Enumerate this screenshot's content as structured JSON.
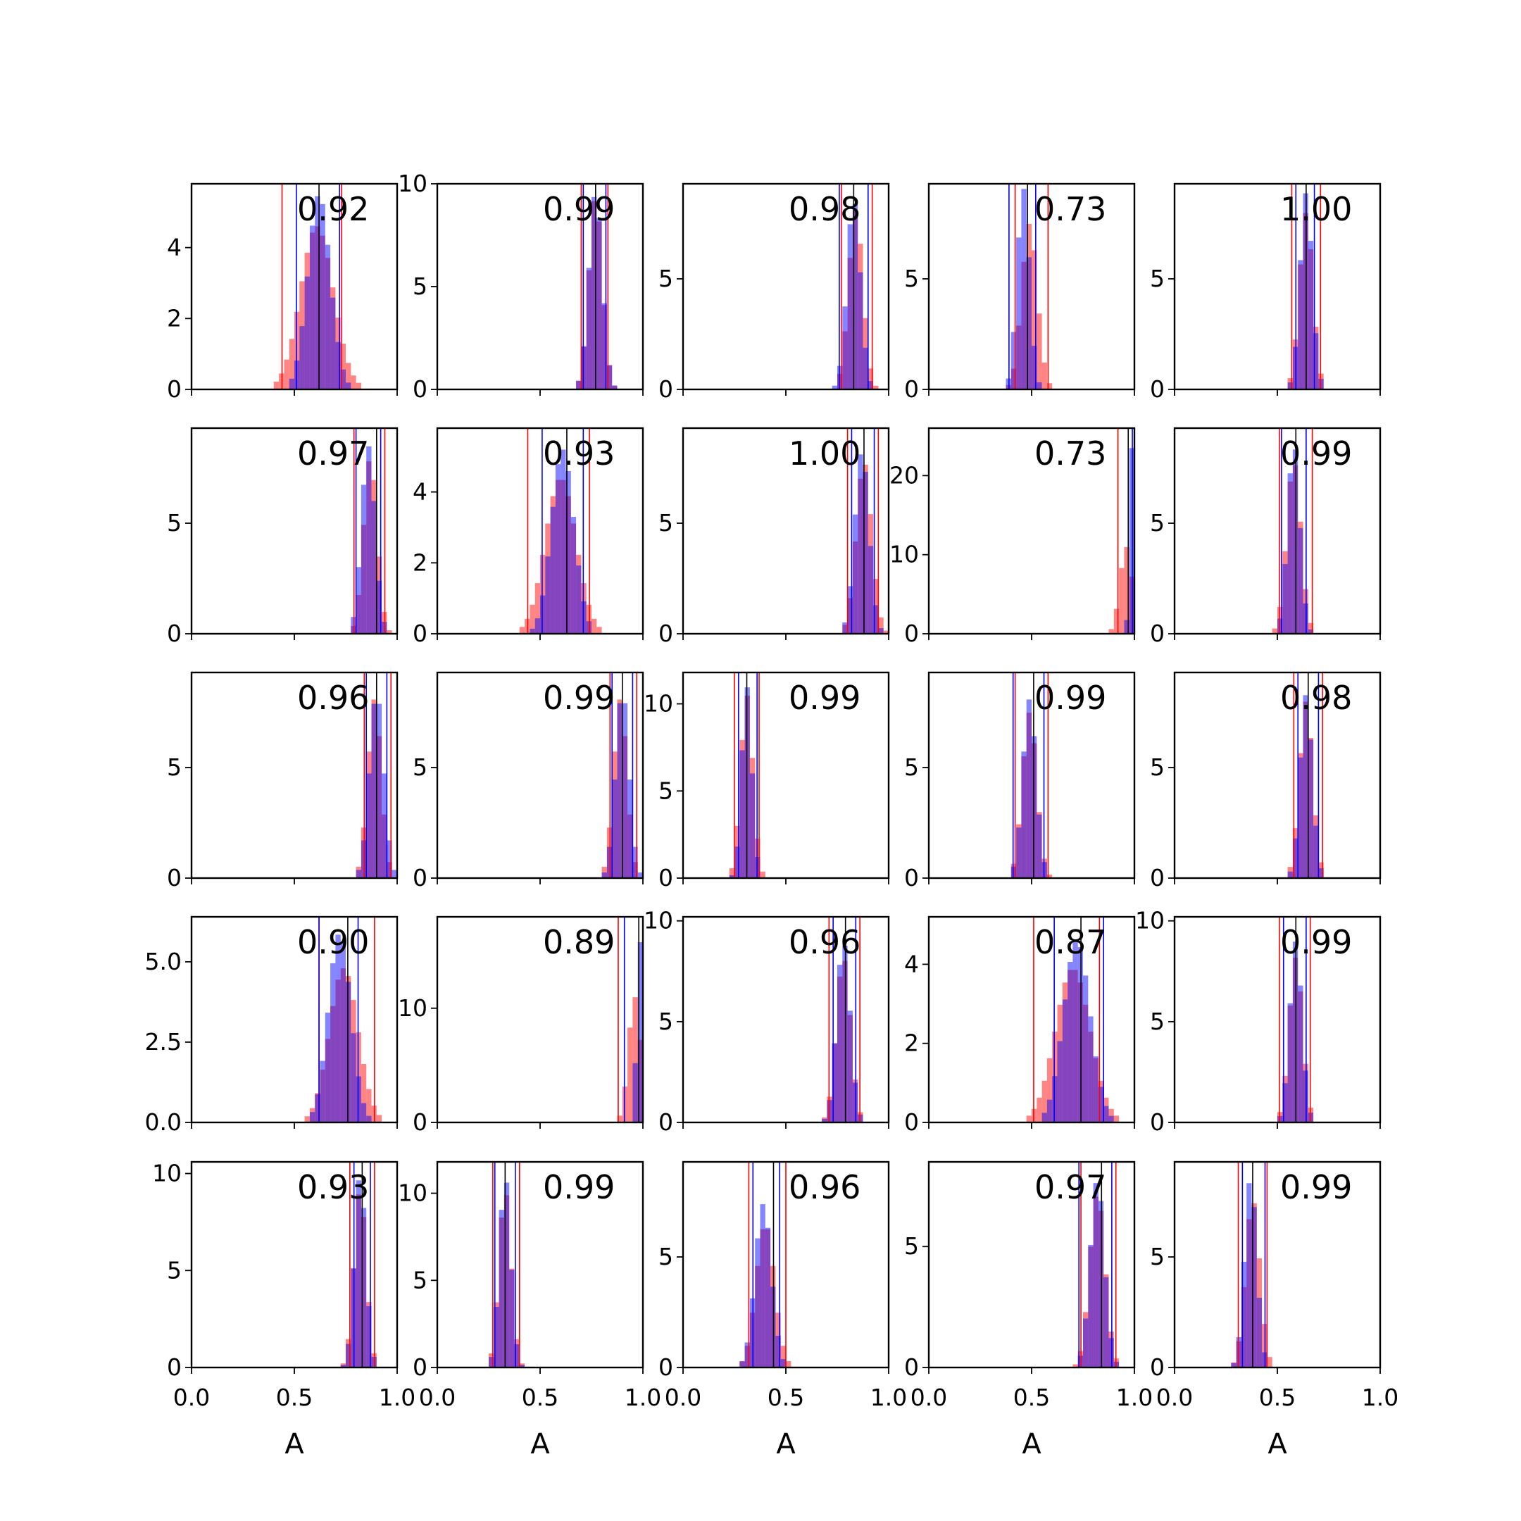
{
  "chart_data": {
    "type": "histogram-grid",
    "rows": 5,
    "cols": 5,
    "xlabel": "A",
    "xlim": [
      0,
      1
    ],
    "xticks": [
      0.0,
      0.5,
      1.0
    ],
    "xtick_labels": [
      "0.0",
      "0.5",
      "1.0"
    ],
    "colors": {
      "red_series": "#ff0000",
      "blue_series": "#0000ff",
      "median_line": "#000000"
    },
    "bin_width": 0.025,
    "panels": [
      {
        "score": "0.92",
        "ylim": [
          0,
          5.8
        ],
        "yticks": [
          0,
          2,
          4
        ],
        "ytick_labels": [
          "0",
          "2",
          "4"
        ],
        "red_lines": [
          0.44,
          0.73
        ],
        "blue_lines": [
          0.51,
          0.72
        ],
        "black_line": 0.62,
        "red": {
          "center": 0.61,
          "width": 0.08,
          "peak": 4.6
        },
        "blue": {
          "center": 0.62,
          "width": 0.055,
          "peak": 5.5
        }
      },
      {
        "score": "0.99",
        "ylim": [
          0,
          10.0
        ],
        "yticks": [
          0,
          5,
          10
        ],
        "ytick_labels": [
          "0",
          "5",
          "10"
        ],
        "red_lines": [
          0.7,
          0.83
        ],
        "blue_lines": [
          0.71,
          0.82
        ],
        "black_line": 0.77,
        "red": {
          "center": 0.77,
          "width": 0.033,
          "peak": 9.4
        },
        "blue": {
          "center": 0.77,
          "width": 0.033,
          "peak": 9.6
        }
      },
      {
        "score": "0.98",
        "ylim": [
          0,
          9.3
        ],
        "yticks": [
          0,
          5
        ],
        "ytick_labels": [
          "0",
          "5"
        ],
        "red_lines": [
          0.77,
          0.92
        ],
        "blue_lines": [
          0.76,
          0.9
        ],
        "black_line": 0.83,
        "red": {
          "center": 0.84,
          "width": 0.035,
          "peak": 8.1
        },
        "blue": {
          "center": 0.83,
          "width": 0.033,
          "peak": 8.6
        }
      },
      {
        "score": "0.73",
        "ylim": [
          0,
          9.3
        ],
        "yticks": [
          0,
          5
        ],
        "ytick_labels": [
          "0",
          "5"
        ],
        "red_lines": [
          0.42,
          0.58
        ],
        "blue_lines": [
          0.39,
          0.52
        ],
        "black_line": 0.48,
        "red": {
          "center": 0.49,
          "width": 0.038,
          "peak": 7.5
        },
        "blue": {
          "center": 0.46,
          "width": 0.03,
          "peak": 9.1
        }
      },
      {
        "score": "1.00",
        "ylim": [
          0,
          9.3
        ],
        "yticks": [
          0,
          5
        ],
        "ytick_labels": [
          "0",
          "5"
        ],
        "red_lines": [
          0.57,
          0.71
        ],
        "blue_lines": [
          0.59,
          0.68
        ],
        "black_line": 0.64,
        "red": {
          "center": 0.64,
          "width": 0.033,
          "peak": 8.0
        },
        "blue": {
          "center": 0.64,
          "width": 0.03,
          "peak": 8.9
        }
      },
      {
        "score": "0.97",
        "ylim": [
          0,
          9.3
        ],
        "yticks": [
          0,
          5
        ],
        "ytick_labels": [
          "0",
          "5"
        ],
        "red_lines": [
          0.79,
          0.94
        ],
        "blue_lines": [
          0.8,
          0.92
        ],
        "black_line": 0.9,
        "red": {
          "center": 0.87,
          "width": 0.033,
          "peak": 8.0
        },
        "blue": {
          "center": 0.86,
          "width": 0.033,
          "peak": 8.5
        }
      },
      {
        "score": "0.93",
        "ylim": [
          0,
          5.8
        ],
        "yticks": [
          0,
          2,
          4
        ],
        "ytick_labels": [
          "0",
          "2",
          "4"
        ],
        "red_lines": [
          0.44,
          0.74
        ],
        "blue_lines": [
          0.51,
          0.71
        ],
        "black_line": 0.63,
        "red": {
          "center": 0.6,
          "width": 0.075,
          "peak": 4.4
        },
        "blue": {
          "center": 0.61,
          "width": 0.055,
          "peak": 5.2
        }
      },
      {
        "score": "1.00",
        "ylim": [
          0,
          9.3
        ],
        "yticks": [
          0,
          5
        ],
        "ytick_labels": [
          "0",
          "5"
        ],
        "red_lines": [
          0.8,
          0.95
        ],
        "blue_lines": [
          0.82,
          0.93
        ],
        "black_line": 0.88,
        "red": {
          "center": 0.88,
          "width": 0.038,
          "peak": 7.8
        },
        "blue": {
          "center": 0.87,
          "width": 0.035,
          "peak": 8.3
        }
      },
      {
        "score": "0.73",
        "ylim": [
          0,
          26
        ],
        "yticks": [
          0,
          10,
          20
        ],
        "ytick_labels": [
          "0",
          "10",
          "20"
        ],
        "red_lines": [
          0.92
        ],
        "blue_lines": [
          0.99
        ],
        "black_line": 0.97,
        "red": {
          "center": 0.96,
          "width": 0.03,
          "peak": 11.0
        },
        "blue": {
          "center": 0.99,
          "width": 0.012,
          "peak": 24.0
        }
      },
      {
        "score": "0.99",
        "ylim": [
          0,
          9.3
        ],
        "yticks": [
          0,
          5
        ],
        "ytick_labels": [
          "0",
          "5"
        ],
        "red_lines": [
          0.51,
          0.67
        ],
        "blue_lines": [
          0.52,
          0.64
        ],
        "black_line": 0.59,
        "red": {
          "center": 0.58,
          "width": 0.035,
          "peak": 7.8
        },
        "blue": {
          "center": 0.58,
          "width": 0.03,
          "peak": 8.6
        }
      },
      {
        "score": "0.96",
        "ylim": [
          0,
          9.3
        ],
        "yticks": [
          0,
          5
        ],
        "ytick_labels": [
          "0",
          "5"
        ],
        "red_lines": [
          0.84,
          0.97
        ],
        "blue_lines": [
          0.85,
          0.95
        ],
        "black_line": 0.9,
        "red": {
          "center": 0.89,
          "width": 0.033,
          "peak": 8.1
        },
        "blue": {
          "center": 0.9,
          "width": 0.035,
          "peak": 8.4
        }
      },
      {
        "score": "0.99",
        "ylim": [
          0,
          9.3
        ],
        "yticks": [
          0,
          5
        ],
        "ytick_labels": [
          "0",
          "5"
        ],
        "red_lines": [
          0.84,
          0.97
        ],
        "blue_lines": [
          0.85,
          0.95
        ],
        "black_line": 0.9,
        "red": {
          "center": 0.89,
          "width": 0.033,
          "peak": 8.1
        },
        "blue": {
          "center": 0.9,
          "width": 0.033,
          "peak": 8.5
        }
      },
      {
        "score": "0.99",
        "ylim": [
          0,
          11.8
        ],
        "yticks": [
          0,
          5,
          10
        ],
        "ytick_labels": [
          "0",
          "5",
          "10"
        ],
        "red_lines": [
          0.25,
          0.37
        ],
        "blue_lines": [
          0.27,
          0.36
        ],
        "black_line": 0.31,
        "red": {
          "center": 0.31,
          "width": 0.03,
          "peak": 10.5
        },
        "blue": {
          "center": 0.31,
          "width": 0.025,
          "peak": 11.0
        }
      },
      {
        "score": "0.99",
        "ylim": [
          0,
          9.3
        ],
        "yticks": [
          0,
          5
        ],
        "ytick_labels": [
          "0",
          "5"
        ],
        "red_lines": [
          0.42,
          0.58
        ],
        "blue_lines": [
          0.41,
          0.56
        ],
        "black_line": 0.51,
        "red": {
          "center": 0.49,
          "width": 0.035,
          "peak": 7.5
        },
        "blue": {
          "center": 0.49,
          "width": 0.033,
          "peak": 8.1
        }
      },
      {
        "score": "0.98",
        "ylim": [
          0,
          9.3
        ],
        "yticks": [
          0,
          5
        ],
        "ytick_labels": [
          "0",
          "5"
        ],
        "red_lines": [
          0.58,
          0.72
        ],
        "blue_lines": [
          0.6,
          0.7
        ],
        "black_line": 0.65,
        "red": {
          "center": 0.64,
          "width": 0.033,
          "peak": 8.0
        },
        "blue": {
          "center": 0.64,
          "width": 0.03,
          "peak": 8.3
        }
      },
      {
        "score": "0.90",
        "ylim": [
          0,
          6.4
        ],
        "yticks": [
          0,
          2.5,
          5.0
        ],
        "ytick_labels": [
          "0.0",
          "2.5",
          "5.0"
        ],
        "red_lines": [
          0.62,
          0.89
        ],
        "blue_lines": [
          0.62,
          0.81
        ],
        "black_line": 0.76,
        "red": {
          "center": 0.74,
          "width": 0.07,
          "peak": 4.8
        },
        "blue": {
          "center": 0.72,
          "width": 0.055,
          "peak": 5.9
        }
      },
      {
        "score": "0.89",
        "ylim": [
          0,
          18
        ],
        "yticks": [
          0,
          10
        ],
        "ytick_labels": [
          "0",
          "10"
        ],
        "red_lines": [
          0.88
        ],
        "blue_lines": [
          0.91
        ],
        "black_line": 0.98,
        "red": {
          "center": 0.96,
          "width": 0.03,
          "peak": 11.0
        },
        "blue": {
          "center": 0.985,
          "width": 0.015,
          "peak": 16.0
        }
      },
      {
        "score": "0.96",
        "ylim": [
          0,
          10.2
        ],
        "yticks": [
          0,
          5,
          10
        ],
        "ytick_labels": [
          "0",
          "5",
          "10"
        ],
        "red_lines": [
          0.71,
          0.86
        ],
        "blue_lines": [
          0.73,
          0.84
        ],
        "black_line": 0.79,
        "red": {
          "center": 0.78,
          "width": 0.035,
          "peak": 8.2
        },
        "blue": {
          "center": 0.78,
          "width": 0.033,
          "peak": 9.0
        }
      },
      {
        "score": "0.87",
        "ylim": [
          0,
          5.2
        ],
        "yticks": [
          0,
          2,
          4
        ],
        "ytick_labels": [
          "0",
          "2",
          "4"
        ],
        "red_lines": [
          0.51,
          0.83
        ],
        "blue_lines": [
          0.61,
          0.85
        ],
        "black_line": 0.74,
        "red": {
          "center": 0.7,
          "width": 0.085,
          "peak": 3.9
        },
        "blue": {
          "center": 0.72,
          "width": 0.065,
          "peak": 4.6
        }
      },
      {
        "score": "0.99",
        "ylim": [
          0,
          10.2
        ],
        "yticks": [
          0,
          5,
          10
        ],
        "ytick_labels": [
          "0",
          "5",
          "10"
        ],
        "red_lines": [
          0.51,
          0.66
        ],
        "blue_lines": [
          0.53,
          0.64
        ],
        "black_line": 0.59,
        "red": {
          "center": 0.59,
          "width": 0.033,
          "peak": 8.2
        },
        "blue": {
          "center": 0.59,
          "width": 0.03,
          "peak": 9.0
        }
      },
      {
        "score": "0.93",
        "ylim": [
          0,
          10.6
        ],
        "yticks": [
          0,
          5,
          10
        ],
        "ytick_labels": [
          "0",
          "5",
          "10"
        ],
        "red_lines": [
          0.77,
          0.89
        ],
        "blue_lines": [
          0.79,
          0.87
        ],
        "black_line": 0.83,
        "red": {
          "center": 0.82,
          "width": 0.03,
          "peak": 9.2
        },
        "blue": {
          "center": 0.82,
          "width": 0.028,
          "peak": 10.0
        }
      },
      {
        "score": "0.99",
        "ylim": [
          0,
          11.8
        ],
        "yticks": [
          0,
          5,
          10
        ],
        "ytick_labels": [
          "0",
          "5",
          "10"
        ],
        "red_lines": [
          0.27,
          0.4
        ],
        "blue_lines": [
          0.28,
          0.38
        ],
        "black_line": 0.33,
        "red": {
          "center": 0.33,
          "width": 0.03,
          "peak": 10.2
        },
        "blue": {
          "center": 0.33,
          "width": 0.028,
          "peak": 11.0
        }
      },
      {
        "score": "0.96",
        "ylim": [
          0,
          9.3
        ],
        "yticks": [
          0,
          5
        ],
        "ytick_labels": [
          "0",
          "5"
        ],
        "red_lines": [
          0.32,
          0.5
        ],
        "blue_lines": [
          0.34,
          0.47
        ],
        "black_line": 0.44,
        "red": {
          "center": 0.4,
          "width": 0.045,
          "peak": 6.5
        },
        "blue": {
          "center": 0.39,
          "width": 0.04,
          "peak": 7.4
        }
      },
      {
        "score": "0.97",
        "ylim": [
          0,
          8.5
        ],
        "yticks": [
          0,
          5
        ],
        "ytick_labels": [
          "0",
          "5"
        ],
        "red_lines": [
          0.74,
          0.91
        ],
        "blue_lines": [
          0.73,
          0.89
        ],
        "black_line": 0.84,
        "red": {
          "center": 0.82,
          "width": 0.038,
          "peak": 7.2
        },
        "blue": {
          "center": 0.82,
          "width": 0.035,
          "peak": 7.8
        }
      },
      {
        "score": "0.99",
        "ylim": [
          0,
          9.3
        ],
        "yticks": [
          0,
          5
        ],
        "ytick_labels": [
          "0",
          "5"
        ],
        "red_lines": [
          0.31,
          0.45
        ],
        "blue_lines": [
          0.33,
          0.44
        ],
        "black_line": 0.38,
        "red": {
          "center": 0.38,
          "width": 0.035,
          "peak": 7.6
        },
        "blue": {
          "center": 0.37,
          "width": 0.03,
          "peak": 8.6
        }
      }
    ]
  }
}
